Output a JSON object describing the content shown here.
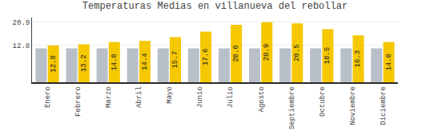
{
  "chart_data": {
    "type": "bar",
    "title": "Temperaturas Medias en villanueva del rebollar",
    "categories": [
      "Enero",
      "Febrero",
      "Marzo",
      "Abril",
      "Mayo",
      "Junio",
      "Julio",
      "Agosto",
      "Septiembre",
      "Octubre",
      "Noviembre",
      "Diciembre"
    ],
    "series": [
      {
        "color": "#B8BFC8",
        "values": [
          11.8,
          11.8,
          11.8,
          11.8,
          11.8,
          11.8,
          11.8,
          11.8,
          11.8,
          11.8,
          11.8,
          11.8
        ]
      },
      {
        "color": "#F5C800",
        "values": [
          12.8,
          13.2,
          14.0,
          14.4,
          15.7,
          17.6,
          20.0,
          20.9,
          20.5,
          18.5,
          16.3,
          14.0
        ],
        "data_labels": true,
        "value_labels": [
          "12.8",
          "13.2",
          "14.0",
          "14.4",
          "15.7",
          "17.6",
          "20.0",
          "20.9",
          "20.5",
          "18.5",
          "16.3",
          "14.0"
        ]
      }
    ],
    "ylim": [
      0,
      22.5
    ],
    "yticks": [
      12.8,
      20.9
    ],
    "y2lim": [
      0,
      22.5
    ],
    "y2ticks": [
      12.8,
      20.9
    ],
    "grid": true
  }
}
